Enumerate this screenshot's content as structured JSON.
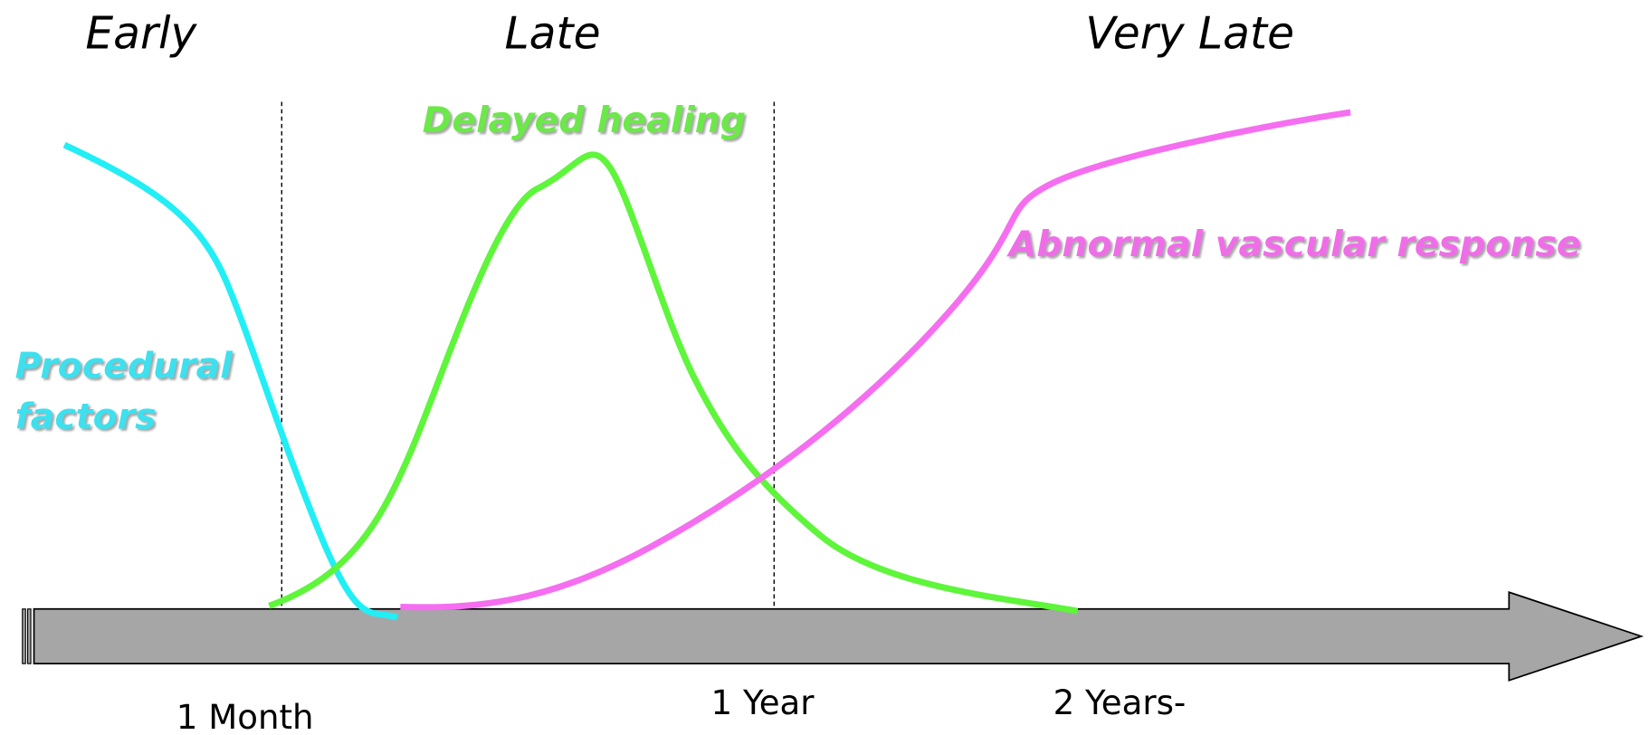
{
  "phases": [
    "Early",
    "Late",
    "Very Late"
  ],
  "curve_labels": {
    "procedural": [
      "Procedural",
      "factors"
    ],
    "delayed": "Delayed healing",
    "abnormal": "Abnormal vascular response"
  },
  "timeline": [
    "1 Month",
    "1 Year",
    "2 Years-"
  ]
}
